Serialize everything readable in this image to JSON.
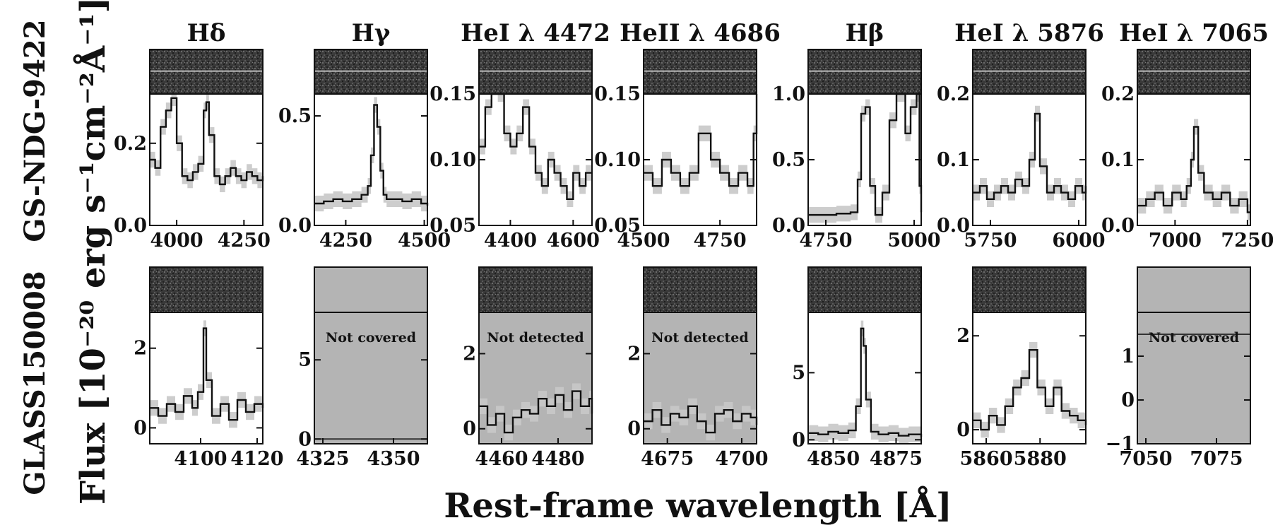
{
  "figure": {
    "ylabel": "Flux [10⁻²⁰ erg s⁻¹cm⁻²Å⁻¹]",
    "xlabel": "Rest-frame wavelength [Å]",
    "rows": [
      "GS-NDG-9422",
      "GLASS150008"
    ],
    "columns": [
      "Hδ",
      "Hγ",
      "HeI λ 4472",
      "HeII λ 4686",
      "Hβ",
      "HeI λ 5876",
      "HeI λ 7065"
    ],
    "colors": {
      "line": "#111111",
      "error_band": "#c8c8c8",
      "uncovered_fill": "#b4b4b4"
    }
  },
  "chart_data": [
    {
      "type": "line",
      "row": 0,
      "col": 0,
      "title": "Hδ",
      "xlim": [
        3900,
        4320
      ],
      "ylim": [
        0,
        0.32
      ],
      "xticks": [
        4000,
        4250
      ],
      "xticklabels": [
        "4000",
        "4250"
      ],
      "yticks": [
        0,
        0.2
      ],
      "yticklabels": [
        "0.0",
        "0.2"
      ],
      "spectrum2d": "visible",
      "status": "",
      "x": [
        3900,
        3920,
        3940,
        3960,
        3980,
        4000,
        4020,
        4040,
        4060,
        4080,
        4100,
        4110,
        4120,
        4140,
        4160,
        4180,
        4200,
        4220,
        4240,
        4260,
        4280,
        4300,
        4320
      ],
      "y": [
        0.16,
        0.14,
        0.24,
        0.28,
        0.31,
        0.2,
        0.12,
        0.11,
        0.13,
        0.15,
        0.28,
        0.3,
        0.22,
        0.12,
        0.1,
        0.12,
        0.14,
        0.12,
        0.11,
        0.13,
        0.12,
        0.11,
        0.12
      ]
    },
    {
      "type": "line",
      "row": 0,
      "col": 1,
      "title": "Hγ",
      "xlim": [
        4150,
        4510
      ],
      "ylim": [
        0,
        0.6
      ],
      "xticks": [
        4250,
        4500
      ],
      "xticklabels": [
        "4250",
        "4500"
      ],
      "yticks": [
        0,
        0.5
      ],
      "yticklabels": [
        "0.0",
        "0.5"
      ],
      "spectrum2d": "visible",
      "status": "",
      "x": [
        4150,
        4180,
        4210,
        4240,
        4270,
        4300,
        4320,
        4330,
        4340,
        4350,
        4360,
        4370,
        4380,
        4400,
        4430,
        4460,
        4490,
        4510
      ],
      "y": [
        0.1,
        0.11,
        0.12,
        0.11,
        0.12,
        0.14,
        0.18,
        0.32,
        0.55,
        0.45,
        0.25,
        0.14,
        0.12,
        0.12,
        0.11,
        0.12,
        0.1,
        0.09
      ]
    },
    {
      "type": "line",
      "row": 0,
      "col": 2,
      "title": "HeI λ 4472",
      "xlim": [
        4300,
        4660
      ],
      "ylim": [
        0.05,
        0.15
      ],
      "xticks": [
        4400,
        4600
      ],
      "xticklabels": [
        "4400",
        "4600"
      ],
      "yticks": [
        0.05,
        0.1,
        0.15
      ],
      "yticklabels": [
        "0.05",
        "0.10",
        "0.15"
      ],
      "spectrum2d": "visible",
      "status": "",
      "x": [
        4300,
        4320,
        4340,
        4360,
        4380,
        4400,
        4420,
        4440,
        4460,
        4480,
        4500,
        4520,
        4540,
        4560,
        4580,
        4600,
        4620,
        4640,
        4660
      ],
      "y": [
        0.11,
        0.14,
        0.17,
        0.15,
        0.12,
        0.11,
        0.12,
        0.14,
        0.11,
        0.09,
        0.08,
        0.1,
        0.09,
        0.08,
        0.07,
        0.09,
        0.08,
        0.09,
        0.09
      ]
    },
    {
      "type": "line",
      "row": 0,
      "col": 3,
      "title": "HeII λ 4686",
      "xlim": [
        4500,
        4870
      ],
      "ylim": [
        0.05,
        0.15
      ],
      "xticks": [
        4500,
        4750
      ],
      "xticklabels": [
        "4500",
        "4750"
      ],
      "yticks": [
        0.05,
        0.1,
        0.15
      ],
      "yticklabels": [
        "0.05",
        "0.10",
        "0.15"
      ],
      "spectrum2d": "visible",
      "status": "",
      "x": [
        4500,
        4530,
        4560,
        4590,
        4620,
        4650,
        4680,
        4700,
        4720,
        4750,
        4780,
        4810,
        4840,
        4860,
        4870
      ],
      "y": [
        0.09,
        0.08,
        0.1,
        0.09,
        0.08,
        0.09,
        0.12,
        0.12,
        0.1,
        0.09,
        0.08,
        0.09,
        0.08,
        0.12,
        0.17
      ]
    },
    {
      "type": "line",
      "row": 0,
      "col": 4,
      "title": "Hβ",
      "xlim": [
        4700,
        5020
      ],
      "ylim": [
        0,
        1.0
      ],
      "xticks": [
        4750,
        5000
      ],
      "xticklabels": [
        "4750",
        "5000"
      ],
      "yticks": [
        0,
        0.5,
        1.0
      ],
      "yticklabels": [
        "0.0",
        "0.5",
        "1.0"
      ],
      "spectrum2d": "visible",
      "status": "",
      "x": [
        4700,
        4740,
        4780,
        4820,
        4840,
        4850,
        4862,
        4875,
        4890,
        4910,
        4930,
        4950,
        4959,
        4975,
        4990,
        5007,
        5015,
        5020
      ],
      "y": [
        0.08,
        0.08,
        0.09,
        0.1,
        0.35,
        0.85,
        0.9,
        0.3,
        0.08,
        0.25,
        0.8,
        1.0,
        1.0,
        0.7,
        0.9,
        1.0,
        0.3,
        0.1
      ]
    },
    {
      "type": "line",
      "row": 0,
      "col": 5,
      "title": "HeI λ 5876",
      "xlim": [
        5700,
        6020
      ],
      "ylim": [
        0,
        0.2
      ],
      "xticks": [
        5750,
        6000
      ],
      "xticklabels": [
        "5750",
        "6000"
      ],
      "yticks": [
        0,
        0.1,
        0.2
      ],
      "yticklabels": [
        "0.0",
        "0.1",
        "0.2"
      ],
      "spectrum2d": "visible",
      "status": "",
      "x": [
        5700,
        5720,
        5740,
        5760,
        5780,
        5800,
        5820,
        5840,
        5860,
        5876,
        5890,
        5910,
        5930,
        5950,
        5970,
        5990,
        6010,
        6020
      ],
      "y": [
        0.05,
        0.06,
        0.04,
        0.05,
        0.06,
        0.05,
        0.07,
        0.06,
        0.1,
        0.17,
        0.09,
        0.05,
        0.06,
        0.05,
        0.04,
        0.06,
        0.05,
        0.06
      ]
    },
    {
      "type": "line",
      "row": 0,
      "col": 6,
      "title": "HeI λ 7065",
      "xlim": [
        6870,
        7260
      ],
      "ylim": [
        0,
        0.2
      ],
      "xticks": [
        7000,
        7250
      ],
      "xticklabels": [
        "7000",
        "7250"
      ],
      "yticks": [
        0,
        0.1,
        0.2
      ],
      "yticklabels": [
        "0.0",
        "0.1",
        "0.2"
      ],
      "spectrum2d": "visible",
      "status": "",
      "x": [
        6870,
        6900,
        6930,
        6960,
        6990,
        7020,
        7040,
        7055,
        7065,
        7080,
        7100,
        7130,
        7160,
        7190,
        7220,
        7250,
        7260
      ],
      "y": [
        0.03,
        0.04,
        0.05,
        0.03,
        0.05,
        0.04,
        0.06,
        0.1,
        0.15,
        0.08,
        0.05,
        0.04,
        0.05,
        0.03,
        0.04,
        0.02,
        0.02
      ]
    },
    {
      "type": "line",
      "row": 1,
      "col": 0,
      "title": "",
      "xlim": [
        4082,
        4122
      ],
      "ylim": [
        -0.4,
        2.9
      ],
      "xticks": [
        4100,
        4120
      ],
      "xticklabels": [
        "4100",
        "4120"
      ],
      "yticks": [
        0,
        2
      ],
      "yticklabels": [
        "0",
        "2"
      ],
      "spectrum2d": "visible",
      "status": "",
      "x": [
        4082,
        4085,
        4088,
        4091,
        4094,
        4097,
        4099,
        4101,
        4102,
        4104,
        4107,
        4110,
        4113,
        4116,
        4119,
        4122
      ],
      "y": [
        0.5,
        0.3,
        0.6,
        0.4,
        0.8,
        0.5,
        0.9,
        2.5,
        1.2,
        0.3,
        0.6,
        0.2,
        0.7,
        0.4,
        0.6,
        0.5
      ]
    },
    {
      "type": "line",
      "row": 1,
      "col": 1,
      "title": "",
      "xlim": [
        4322,
        4362
      ],
      "ylim": [
        -0.3,
        8.0
      ],
      "xticks": [
        4325,
        4350
      ],
      "xticklabels": [
        "4325",
        "4350"
      ],
      "yticks": [
        0,
        5
      ],
      "yticklabels": [
        "0",
        "5"
      ],
      "spectrum2d": "none",
      "status": "Not covered",
      "x": [
        4322,
        4362
      ],
      "y": [
        0,
        0
      ]
    },
    {
      "type": "line",
      "row": 1,
      "col": 2,
      "title": "",
      "xlim": [
        4452,
        4492
      ],
      "ylim": [
        -0.4,
        3.1
      ],
      "xticks": [
        4460,
        4480
      ],
      "xticklabels": [
        "4460",
        "4480"
      ],
      "yticks": [
        0,
        2
      ],
      "yticklabels": [
        "0",
        "2"
      ],
      "spectrum2d": "visible",
      "status": "Not detected",
      "x": [
        4452,
        4455,
        4458,
        4461,
        4464,
        4467,
        4470,
        4473,
        4476,
        4479,
        4482,
        4485,
        4488,
        4491,
        4492
      ],
      "y": [
        0.6,
        0.1,
        0.4,
        -0.1,
        0.3,
        0.5,
        0.4,
        0.8,
        0.6,
        0.9,
        0.5,
        1.0,
        0.6,
        0.8,
        0.4
      ]
    },
    {
      "type": "line",
      "row": 1,
      "col": 3,
      "title": "",
      "xlim": [
        4667,
        4705
      ],
      "ylim": [
        -0.4,
        3.1
      ],
      "xticks": [
        4675,
        4700
      ],
      "xticklabels": [
        "4675",
        "4700"
      ],
      "yticks": [
        0,
        2
      ],
      "yticklabels": [
        "0",
        "2"
      ],
      "spectrum2d": "visible",
      "status": "Not detected",
      "x": [
        4667,
        4670,
        4673,
        4676,
        4679,
        4682,
        4685,
        4688,
        4691,
        4694,
        4697,
        4700,
        4703,
        4705
      ],
      "y": [
        0.2,
        0.5,
        0.1,
        0.4,
        0.3,
        0.6,
        0.2,
        -0.1,
        0.4,
        0.5,
        0.2,
        0.4,
        0.3,
        0.1
      ]
    },
    {
      "type": "line",
      "row": 1,
      "col": 4,
      "title": "",
      "xlim": [
        4840,
        4885
      ],
      "ylim": [
        -0.3,
        9.5
      ],
      "xticks": [
        4850,
        4875
      ],
      "xticklabels": [
        "4850",
        "4875"
      ],
      "yticks": [
        0,
        5
      ],
      "yticklabels": [
        "0",
        "5"
      ],
      "spectrum2d": "visible",
      "status": "",
      "x": [
        4840,
        4844,
        4848,
        4852,
        4856,
        4859,
        4861,
        4862,
        4863,
        4865,
        4868,
        4872,
        4876,
        4880,
        4885
      ],
      "y": [
        0.5,
        0.4,
        0.6,
        0.5,
        0.7,
        2.5,
        8.3,
        7.0,
        3.0,
        0.6,
        0.4,
        0.5,
        0.3,
        0.4,
        0.2
      ]
    },
    {
      "type": "line",
      "row": 1,
      "col": 5,
      "title": "",
      "xlim": [
        5855,
        5897
      ],
      "ylim": [
        -0.3,
        2.5
      ],
      "xticks": [
        5860,
        5880
      ],
      "xticklabels": [
        "5860",
        "5880"
      ],
      "yticks": [
        0,
        2
      ],
      "yticklabels": [
        "0",
        "2"
      ],
      "spectrum2d": "visible",
      "status": "",
      "x": [
        5855,
        5858,
        5861,
        5864,
        5867,
        5870,
        5873,
        5876,
        5879,
        5882,
        5885,
        5888,
        5891,
        5894,
        5897
      ],
      "y": [
        0.2,
        0.0,
        0.3,
        0.1,
        0.5,
        0.9,
        1.1,
        1.7,
        0.9,
        0.5,
        0.9,
        0.4,
        0.3,
        0.2,
        0.1
      ]
    },
    {
      "type": "line",
      "row": 1,
      "col": 6,
      "title": "",
      "xlim": [
        7047,
        7087
      ],
      "ylim": [
        -1.0,
        2.0
      ],
      "xticks": [
        7050,
        7075
      ],
      "xticklabels": [
        "7050",
        "7075"
      ],
      "yticks": [
        -1,
        0,
        1
      ],
      "yticklabels": [
        "−1",
        "0",
        "1"
      ],
      "spectrum2d": "none",
      "status": "Not covered",
      "x": [
        7047,
        7087
      ],
      "y": [
        1.5,
        1.5
      ]
    }
  ]
}
